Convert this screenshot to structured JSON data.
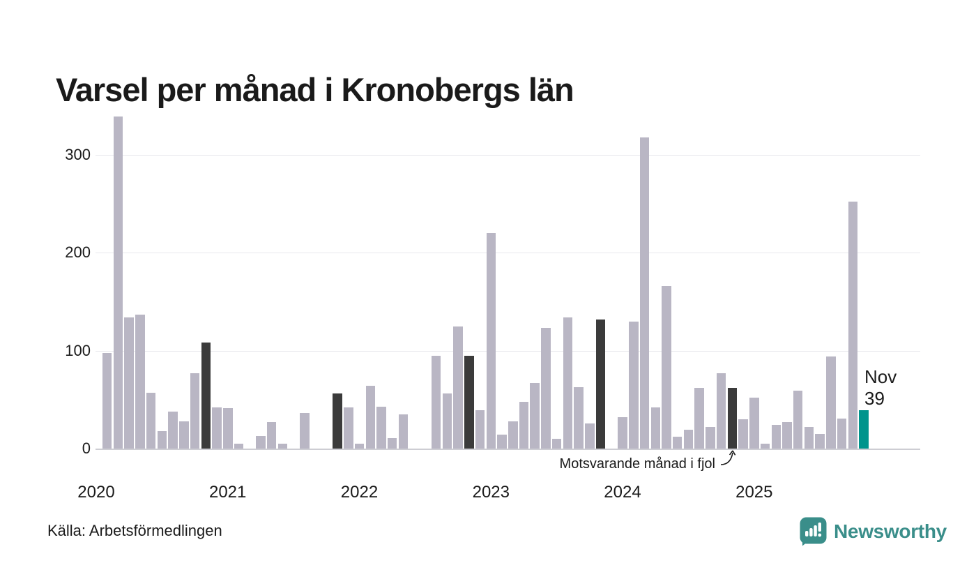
{
  "title": "Varsel per månad i Kronobergs län",
  "source": "Källa: Arbetsförmedlingen",
  "annotation": {
    "text": "Motsvarande månad i fjol"
  },
  "current_label": {
    "month": "Nov",
    "value": "39"
  },
  "brand": {
    "name": "Newsworthy",
    "icon": "speech-bubble-bar-chart-icon"
  },
  "colors": {
    "bar": "#b9b6c4",
    "highlight_bar": "#3b3b3b",
    "current_bar": "#00948c",
    "grid": "#e8e8ec",
    "axis": "#cdcdd3",
    "text": "#1a1a1a",
    "brand": "#3a8e8a"
  },
  "chart_data": {
    "type": "bar",
    "title": "Varsel per månad i Kronobergs län",
    "xlabel": "",
    "ylabel": "",
    "ylim": [
      0,
      350
    ],
    "yticks": [
      0,
      100,
      200,
      300
    ],
    "grid": "horizontal",
    "legend": "none",
    "years": [
      "2020",
      "2021",
      "2022",
      "2023",
      "2024",
      "2025"
    ],
    "start_month": "2020-02",
    "end_month": "2025-11",
    "highlight_months": [
      "2020-11",
      "2021-11",
      "2022-11",
      "2023-11",
      "2024-11"
    ],
    "current_month": "2025-11",
    "months": [
      "2020-02",
      "2020-03",
      "2020-04",
      "2020-05",
      "2020-06",
      "2020-07",
      "2020-08",
      "2020-09",
      "2020-10",
      "2020-11",
      "2020-12",
      "2021-01",
      "2021-02",
      "2021-03",
      "2021-04",
      "2021-05",
      "2021-06",
      "2021-07",
      "2021-08",
      "2021-09",
      "2021-10",
      "2021-11",
      "2021-12",
      "2022-01",
      "2022-02",
      "2022-03",
      "2022-04",
      "2022-05",
      "2022-06",
      "2022-07",
      "2022-08",
      "2022-09",
      "2022-10",
      "2022-11",
      "2022-12",
      "2023-01",
      "2023-02",
      "2023-03",
      "2023-04",
      "2023-05",
      "2023-06",
      "2023-07",
      "2023-08",
      "2023-09",
      "2023-10",
      "2023-11",
      "2023-12",
      "2024-01",
      "2024-02",
      "2024-03",
      "2024-04",
      "2024-05",
      "2024-06",
      "2024-07",
      "2024-08",
      "2024-09",
      "2024-10",
      "2024-11",
      "2024-12",
      "2025-01",
      "2025-02",
      "2025-03",
      "2025-04",
      "2025-05",
      "2025-06",
      "2025-07",
      "2025-08",
      "2025-09",
      "2025-10",
      "2025-11"
    ],
    "values": [
      98,
      339,
      134,
      137,
      57,
      18,
      38,
      28,
      77,
      108,
      42,
      41,
      5,
      0,
      13,
      27,
      5,
      0,
      36,
      0,
      0,
      56,
      42,
      5,
      64,
      43,
      11,
      35,
      0,
      0,
      95,
      56,
      125,
      95,
      39,
      220,
      14,
      28,
      48,
      67,
      123,
      10,
      134,
      63,
      26,
      132,
      0,
      32,
      130,
      318,
      42,
      166,
      12,
      19,
      62,
      22,
      77,
      62,
      30,
      52,
      5,
      24,
      27,
      59,
      22,
      15,
      94,
      31,
      252,
      39
    ]
  }
}
